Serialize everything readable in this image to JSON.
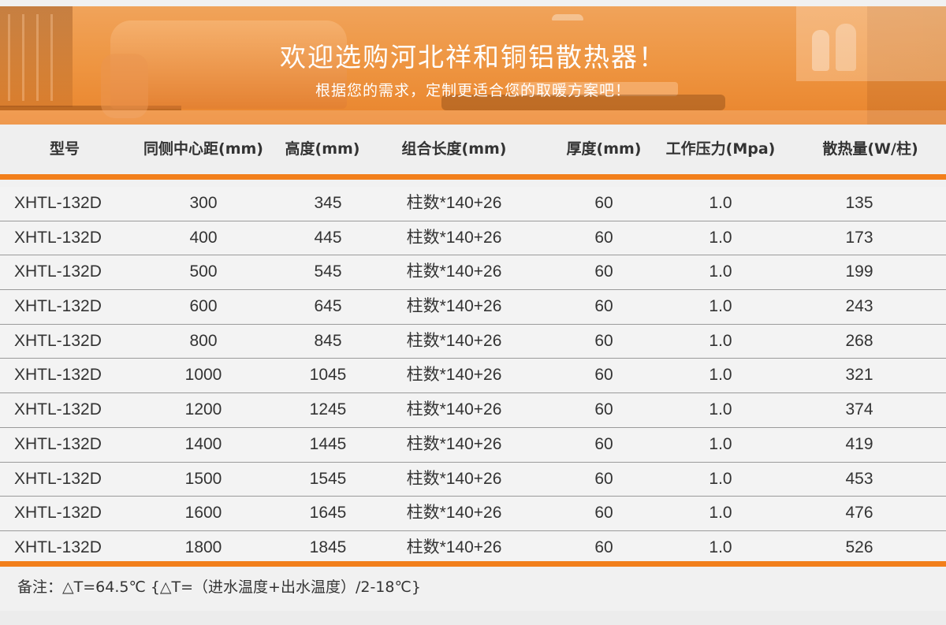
{
  "banner": {
    "title": "欢迎选购河北祥和铜铝散热器！",
    "subtitle": "根据您的需求，定制更适合您的取暖方案吧！"
  },
  "table": {
    "headers": [
      "型号",
      "同侧中心距(mm)",
      "高度(mm)",
      "组合长度(mm)",
      "厚度(mm)",
      "工作压力(Mpa)",
      "散热量(W/柱)"
    ],
    "rows": [
      [
        "XHTL-132D",
        "300",
        "345",
        "柱数*140+26",
        "60",
        "1.0",
        "135"
      ],
      [
        "XHTL-132D",
        "400",
        "445",
        "柱数*140+26",
        "60",
        "1.0",
        "173"
      ],
      [
        "XHTL-132D",
        "500",
        "545",
        "柱数*140+26",
        "60",
        "1.0",
        "199"
      ],
      [
        "XHTL-132D",
        "600",
        "645",
        "柱数*140+26",
        "60",
        "1.0",
        "243"
      ],
      [
        "XHTL-132D",
        "800",
        "845",
        "柱数*140+26",
        "60",
        "1.0",
        "268"
      ],
      [
        "XHTL-132D",
        "1000",
        "1045",
        "柱数*140+26",
        "60",
        "1.0",
        "321"
      ],
      [
        "XHTL-132D",
        "1200",
        "1245",
        "柱数*140+26",
        "60",
        "1.0",
        "374"
      ],
      [
        "XHTL-132D",
        "1400",
        "1445",
        "柱数*140+26",
        "60",
        "1.0",
        "419"
      ],
      [
        "XHTL-132D",
        "1500",
        "1545",
        "柱数*140+26",
        "60",
        "1.0",
        "453"
      ],
      [
        "XHTL-132D",
        "1600",
        "1645",
        "柱数*140+26",
        "60",
        "1.0",
        "476"
      ],
      [
        "XHTL-132D",
        "1800",
        "1845",
        "柱数*140+26",
        "60",
        "1.0",
        "526"
      ]
    ]
  },
  "footer": {
    "note": "备注：△T=64.5℃ {△T=（进水温度+出水温度）/2-18℃}"
  },
  "colors": {
    "accent": "#f27f1b",
    "banner": "#ee9541",
    "row_bg": "#f3f3f3",
    "divider": "#9a9a9a"
  }
}
